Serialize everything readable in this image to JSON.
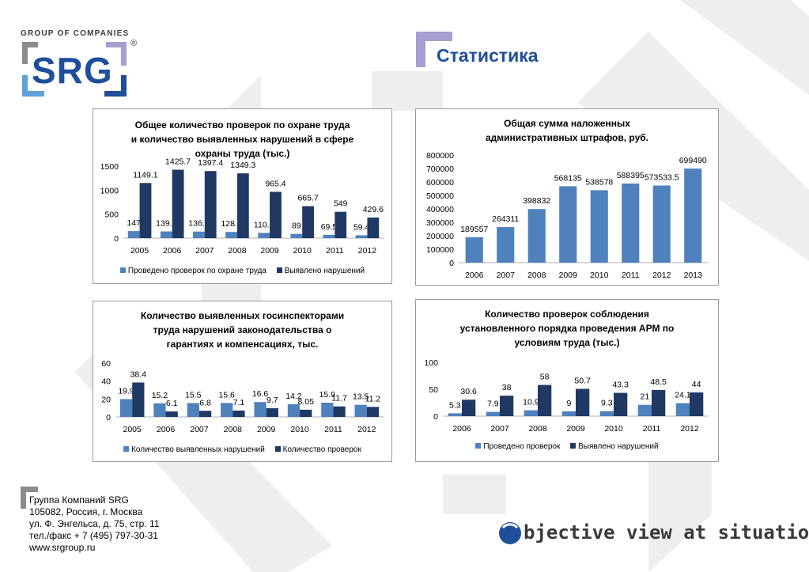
{
  "brand": {
    "group_label": "GROUP OF COMPANIES",
    "logo_text": "SRG",
    "registered_mark": "®",
    "colors": {
      "blue": "#1f4e9a",
      "grey": "#8c8c8c",
      "light_blue": "#5fa0d8",
      "purple": "#a79fd1"
    }
  },
  "page": {
    "title": "Статистика"
  },
  "footer": {
    "lines": [
      "Группа Компаний SRG",
      "105082, Россия, г. Москва",
      "ул. Ф. Энгельса, д. 75, стр. 11",
      "тел./факс  + 7 (495) 797-30-31",
      "www.srgroup.ru"
    ],
    "tagline": "bjective view at situation"
  },
  "chart_data": [
    {
      "type": "bar",
      "title": "Общее количество проверок по охране труда и количество выявленных нарушений в сфере охраны труда (тыс.)",
      "title_lines": [
        "Общее количество проверок по охране труда",
        "и количество выявленных нарушений в сфере",
        "охраны труда (тыс.)"
      ],
      "categories": [
        "2005",
        "2006",
        "2007",
        "2008",
        "2009",
        "2010",
        "2011",
        "2012"
      ],
      "series": [
        {
          "name": "Проведено проверок по охране труда",
          "color": "#4f81bd",
          "values": [
            147,
            139.2,
            136.4,
            128.2,
            110.1,
            89,
            69.5,
            59.4
          ],
          "labels": [
            "147",
            "139.2",
            "136.4",
            "128.2",
            "110.1",
            "89",
            "69.5",
            "59.4"
          ]
        },
        {
          "name": "Выявлено нарушений",
          "color": "#1f3864",
          "values": [
            1149.1,
            1425.7,
            1397.4,
            1349.3,
            965.4,
            665.7,
            549,
            429.6
          ],
          "labels": [
            "1149.1",
            "1425.7",
            "1397.4",
            "1349.3",
            "965.4",
            "665.7",
            "549",
            "429.6"
          ]
        }
      ],
      "ylim": [
        0,
        1500
      ],
      "yticks": [
        0,
        500,
        1000,
        1500
      ],
      "ytick_labels": [
        "0",
        "500",
        "1000",
        "1500"
      ],
      "legend": "bottom",
      "grid": false
    },
    {
      "type": "bar",
      "title": "Общая сумма наложенных административных штрафов, руб.",
      "title_lines": [
        "Общая сумма наложенных",
        "административных штрафов, руб."
      ],
      "categories": [
        "2006",
        "2007",
        "2008",
        "2009",
        "2010",
        "2011",
        "2012",
        "2013"
      ],
      "series": [
        {
          "color": "#4f81bd",
          "values": [
            189557,
            264311,
            398832,
            568135,
            538578,
            588395,
            573533.5,
            699490
          ],
          "labels": [
            "189557",
            "264311",
            "398832",
            "568135",
            "538578",
            "588395",
            "573533.5",
            "699490"
          ]
        }
      ],
      "ylim": [
        0,
        800000
      ],
      "yticks": [
        0,
        100000,
        200000,
        300000,
        400000,
        500000,
        600000,
        700000,
        800000
      ],
      "ytick_labels": [
        "0",
        "100000",
        "200000",
        "300000",
        "400000",
        "500000",
        "600000",
        "700000",
        "800000"
      ],
      "legend": "none",
      "grid": false
    },
    {
      "type": "bar",
      "title": "Количество выявленных госинспекторами труда нарушений законодательства о гарантиях и компенсациях, тыс.",
      "title_lines": [
        "Количество  выявленных госинспекторами",
        "труда нарушений законодательства о",
        "гарантиях и компенсациях, тыс."
      ],
      "categories": [
        "2005",
        "2006",
        "2007",
        "2008",
        "2009",
        "2010",
        "2011",
        "2012"
      ],
      "series": [
        {
          "name": "Количество выявленных нарушений",
          "color": "#4f81bd",
          "values": [
            19.9,
            15.2,
            15.5,
            15.6,
            16.6,
            14.2,
            15.9,
            13.5
          ],
          "labels": [
            "19.9",
            "15.2",
            "15.5",
            "15.6",
            "16.6",
            "14.2",
            "15.9",
            "13.5"
          ]
        },
        {
          "name": "Количество проверок",
          "color": "#1f3864",
          "values": [
            38.4,
            6.1,
            6.8,
            7.1,
            9.7,
            8.05,
            11.7,
            11.2
          ],
          "labels": [
            "38.4",
            "6.1",
            "6.8",
            "7.1",
            "9.7",
            "8.05",
            "11.7",
            "11.2"
          ]
        }
      ],
      "ylim": [
        0,
        60
      ],
      "yticks": [
        0,
        20,
        40,
        60
      ],
      "ytick_labels": [
        "0",
        "20",
        "40",
        "60"
      ],
      "legend": "bottom",
      "grid": false
    },
    {
      "type": "bar",
      "title": "Количество проверок соблюдения установленного порядка проведения АРМ по условиям труда (тыс.)",
      "title_lines": [
        "Количество проверок соблюдения",
        "установленного порядка  проведения АРМ по",
        "условиям труда (тыс.)"
      ],
      "categories": [
        "2006",
        "2007",
        "2008",
        "2009",
        "2010",
        "2011",
        "2012"
      ],
      "series": [
        {
          "name": "Проведено проверок",
          "color": "#4f81bd",
          "values": [
            5.3,
            7.9,
            10.9,
            9,
            9.3,
            21,
            24.1
          ],
          "labels": [
            "5.3",
            "7.9",
            "10.9",
            "9",
            "9.3",
            "21",
            "24.1"
          ]
        },
        {
          "name": "Выявлено нарушений",
          "color": "#1f3864",
          "values": [
            30.6,
            38,
            58,
            50.7,
            43.3,
            48.5,
            44
          ],
          "labels": [
            "30.6",
            "38",
            "58",
            "50.7",
            "43.3",
            "48.5",
            "44"
          ]
        }
      ],
      "ylim": [
        0,
        100
      ],
      "yticks": [
        0,
        50,
        100
      ],
      "ytick_labels": [
        "0",
        "50",
        "100"
      ],
      "legend": "bottom",
      "grid": false
    }
  ]
}
